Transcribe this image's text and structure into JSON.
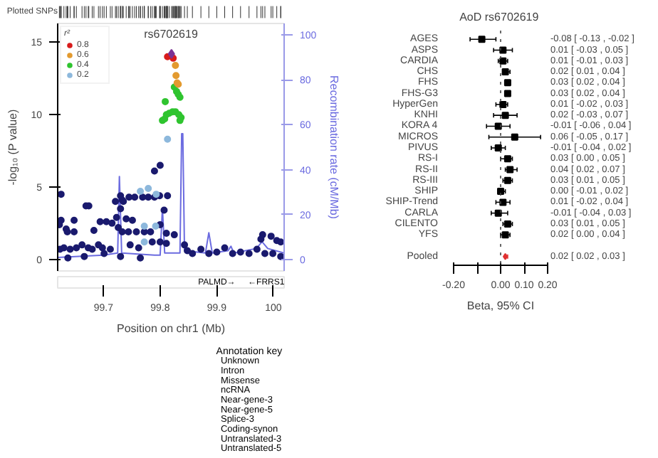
{
  "chart_data": [
    {
      "type": "scatter",
      "title": "rs6702619",
      "xlabel": "Position on chr1 (Mb)",
      "ylabel": "-log₁₀ (P value)",
      "y2label": "Recombination rate (cM/Mb)",
      "legend_title": "r²",
      "legend": "top left",
      "xlim": [
        99.619,
        100.019
      ],
      "xticks": [
        99.7,
        99.8,
        99.9,
        100
      ],
      "ylim": [
        -0.8,
        16.3
      ],
      "yticks": [
        0,
        5,
        10,
        15
      ],
      "y2lim": [
        -5,
        105
      ],
      "y2ticks": [
        0,
        20,
        40,
        60,
        80,
        100
      ],
      "annotations": [
        "Plotted SNPs",
        "PALMD→",
        "←FRRS1",
        "Annotation key",
        "Unknown",
        "Intron",
        "Missense",
        "ncRNA",
        "Near-gene-3",
        "Near-gene-5",
        "Splice-3",
        "Coding-synon",
        "Untranslated-3",
        "Untranslated-5"
      ],
      "series": [
        {
          "type": "line",
          "axis": "y2",
          "color": "#6b6be0",
          "x": [
            99.619,
            99.7,
            99.725,
            99.728,
            99.732,
            99.79,
            99.8,
            99.804,
            99.808,
            99.835,
            99.838,
            99.84,
            99.843,
            99.88,
            99.886,
            99.892,
            99.92,
            99.925,
            99.93,
            99.97,
            99.98,
            99.99,
            100.019
          ],
          "values": [
            1,
            2,
            3,
            37,
            3,
            2,
            2,
            23,
            3,
            3,
            56,
            56,
            4,
            3,
            12,
            3,
            4,
            6,
            3,
            5,
            8,
            5,
            3
          ]
        },
        {
          "color": "#1a1a6e",
          "marker": "circle",
          "x": [
            99.625,
            99.669,
            99.674,
            99.721,
            99.73,
            99.733,
            99.735,
            99.73,
            99.745,
            99.755,
            99.769,
            99.779,
            99.79,
            99.799,
            99.79,
            99.8,
            99.813,
            99.807,
            99.625,
            99.622,
            99.634,
            99.648,
            99.636,
            99.648,
            99.683,
            99.694,
            99.705,
            99.715,
            99.723,
            99.726,
            99.733,
            99.74,
            99.751,
            99.744,
            99.758,
            99.772,
            99.783,
            99.8,
            99.811,
            99.825,
            99.786,
            99.8,
            99.811,
            99.747,
            99.762,
            99.765,
            99.623,
            99.63,
            99.641,
            99.652,
            99.662,
            99.673,
            99.68,
            99.691,
            99.698,
            99.712,
            99.666,
            99.637,
            99.701,
            99.73,
            99.843,
            99.848,
            99.857,
            99.872,
            99.886,
            99.9,
            99.914,
            99.928,
            99.942,
            99.957,
            99.971,
            99.981,
            99.978,
            99.996,
            100.006,
            100.013,
            99.985,
            99.999,
            100.013
          ],
          "values": [
            4.5,
            3.7,
            3.7,
            4.0,
            4.4,
            4.1,
            4.0,
            3.5,
            4.3,
            4.3,
            4.3,
            4.3,
            4.3,
            4.4,
            6.1,
            6.5,
            4.4,
            3.4,
            2.7,
            2.4,
            2.1,
            2.7,
            1.9,
            1.9,
            2.0,
            2.6,
            2.6,
            2.5,
            2.9,
            2.2,
            1.9,
            2.8,
            2.7,
            1.9,
            1.9,
            1.9,
            1.9,
            2.4,
            1.8,
            1.7,
            1.2,
            1.2,
            1.1,
            1.0,
            0.8,
            0.1,
            0.7,
            0.8,
            0.7,
            0.8,
            1.0,
            0.8,
            0.7,
            1.0,
            0.8,
            0.7,
            0.2,
            0.1,
            0.4,
            0.2,
            1.0,
            0.6,
            0.4,
            0.7,
            0.4,
            0.5,
            0.8,
            0.4,
            0.5,
            0.4,
            0.7,
            1.7,
            1.4,
            1.6,
            1.3,
            1.2,
            0.4,
            0.4,
            0.2
          ]
        },
        {
          "name": "0.2",
          "color": "#8db8dc",
          "marker": "circle",
          "x": [
            99.813,
            99.765,
            99.779,
            99.793,
            99.772,
            99.792,
            99.772
          ],
          "values": [
            8.3,
            4.7,
            4.9,
            4.5,
            2.3,
            2.3,
            1.2
          ]
        },
        {
          "name": "0.4",
          "color": "#2fc42f",
          "marker": "circle",
          "x": [
            99.825,
            99.829,
            99.832,
            99.835,
            99.809,
            99.804,
            99.808,
            99.811,
            99.816,
            99.822,
            99.827,
            99.833,
            99.837,
            99.835
          ],
          "values": [
            11.9,
            11.6,
            11.4,
            11.2,
            10.9,
            9.6,
            9.7,
            10.0,
            10.1,
            10.2,
            10.2,
            10.0,
            9.8,
            9.6
          ]
        },
        {
          "name": "0.6",
          "color": "#e39a2f",
          "marker": "circle",
          "x": [
            99.827,
            99.828,
            99.83,
            99.832
          ],
          "values": [
            13.4,
            12.7,
            12.2,
            12.1
          ]
        },
        {
          "name": "0.8",
          "color": "#d81c1c",
          "marker": "circle",
          "x": [
            99.813,
            99.823
          ],
          "values": [
            14.0,
            13.9
          ]
        },
        {
          "color": "#7b3294",
          "marker": "diamond",
          "x": [
            99.82
          ],
          "values": [
            14.2
          ]
        }
      ]
    },
    {
      "type": "scatter",
      "orientation": "horizontal",
      "title": "AoD  rs6702619",
      "xlabel": "Beta, 95% CI",
      "xlim": [
        -0.2,
        0.2
      ],
      "xticks": [
        {
          "value": -0.2,
          "label": "-0.20"
        },
        {
          "value": -0.1,
          "label": null
        },
        {
          "value": 0,
          "label": "0.00"
        },
        {
          "value": 0.1,
          "label": "0.10"
        },
        {
          "value": 0.2,
          "label": "0.20"
        }
      ],
      "categories": [
        "AGES",
        "ASPS",
        "CARDIA",
        "CHS",
        "FHS",
        "FHS-G3",
        "HyperGen",
        "KNHI",
        "KORA 4",
        "MICROS",
        "PIVUS",
        "RS-I",
        "RS-II",
        "RS-III",
        "SHIP",
        "SHIP-Trend",
        "CARLA",
        "CILENTO",
        "YFS",
        null,
        "Pooled"
      ],
      "ref_lines": [
        {
          "axis": "x",
          "value": 0,
          "line_style": "dotted",
          "color": "#444444"
        }
      ],
      "series": [
        {
          "color": "#000000",
          "marker": "square",
          "values": [
            -0.08,
            0.01,
            0.01,
            0.02,
            0.03,
            0.03,
            0.01,
            0.02,
            -0.01,
            0.06,
            -0.01,
            0.03,
            0.04,
            0.03,
            0.0,
            0.01,
            -0.01,
            0.03,
            0.02,
            null,
            null
          ],
          "errors": [
            [
              -0.13,
              -0.02
            ],
            [
              -0.03,
              0.05
            ],
            [
              -0.01,
              0.03
            ],
            [
              0.01,
              0.04
            ],
            [
              0.02,
              0.04
            ],
            [
              0.02,
              0.04
            ],
            [
              -0.02,
              0.03
            ],
            [
              -0.03,
              0.07
            ],
            [
              -0.06,
              0.04
            ],
            [
              -0.05,
              0.17
            ],
            [
              -0.04,
              0.02
            ],
            [
              0.0,
              0.05
            ],
            [
              0.02,
              0.07
            ],
            [
              0.01,
              0.05
            ],
            [
              -0.01,
              0.02
            ],
            [
              -0.02,
              0.04
            ],
            [
              -0.04,
              0.03
            ],
            [
              0.01,
              0.05
            ],
            [
              0.0,
              0.04
            ],
            null,
            null
          ]
        },
        {
          "color": "#e03030",
          "marker": "diamond",
          "values": [
            null,
            null,
            null,
            null,
            null,
            null,
            null,
            null,
            null,
            null,
            null,
            null,
            null,
            null,
            null,
            null,
            null,
            null,
            null,
            null,
            0.02
          ],
          "errors": [
            null,
            null,
            null,
            null,
            null,
            null,
            null,
            null,
            null,
            null,
            null,
            null,
            null,
            null,
            null,
            null,
            null,
            null,
            null,
            null,
            [
              0.02,
              0.03
            ]
          ]
        }
      ],
      "annotations": [
        "-0.08 [ -0.13 , -0.02 ]",
        "0.01 [ -0.03 , 0.05 ]",
        "0.01 [ -0.01 , 0.03 ]",
        "0.02 [ 0.01 , 0.04 ]",
        "0.03 [ 0.02 , 0.04 ]",
        "0.03 [ 0.02 , 0.04 ]",
        "0.01 [ -0.02 , 0.03 ]",
        "0.02 [ -0.03 , 0.07 ]",
        "-0.01 [ -0.06 , 0.04 ]",
        "0.06 [ -0.05 , 0.17 ]",
        "-0.01 [ -0.04 , 0.02 ]",
        "0.03 [ 0.00 , 0.05 ]",
        "0.04 [ 0.02 , 0.07 ]",
        "0.03 [ 0.01 , 0.05 ]",
        "0.00 [ -0.01 , 0.02 ]",
        "0.01 [ -0.02 , 0.04 ]",
        "-0.01 [ -0.04 , 0.03 ]",
        "0.03 [ 0.01 , 0.05 ]",
        "0.02 [ 0.00 , 0.04 ]",
        "0.02 [ 0.02 , 0.03 ]"
      ]
    }
  ]
}
